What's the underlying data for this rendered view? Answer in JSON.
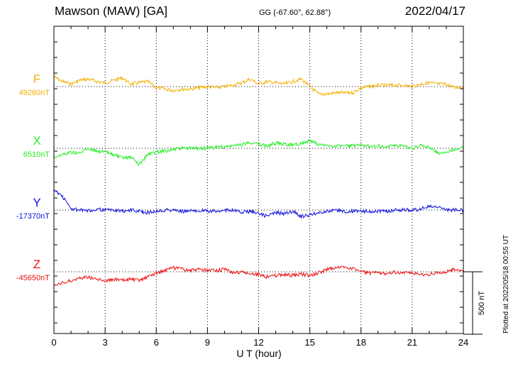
{
  "header": {
    "station": "Mawson (MAW)  [GA]",
    "coords": "GG (-67.60°,  62.88°)",
    "date": "2022/04/17"
  },
  "scale_label": "500 nT",
  "plotted_note": "Plotted at 2022/05/18 00:55 UT",
  "colors": {
    "F": "#f5b000",
    "X": "#22ee22",
    "Y": "#1010e0",
    "Z": "#ee1111",
    "axes": "#000000"
  },
  "chart_data": {
    "type": "line",
    "xlabel": "U T (hour)",
    "xlim": [
      0,
      24
    ],
    "xticks": [
      0,
      3,
      6,
      9,
      12,
      15,
      18,
      21,
      24
    ],
    "grid": true,
    "units": "nT",
    "scale_bar_nT": 500,
    "series": [
      {
        "name": "F",
        "baseline_label": "49280nT",
        "baseline": 49280,
        "x": [
          0,
          0.5,
          1,
          1.5,
          2,
          2.5,
          3,
          3.5,
          4,
          4.5,
          5,
          5.5,
          6,
          6.5,
          7,
          7.5,
          8,
          8.5,
          9,
          9.5,
          10,
          10.5,
          11,
          11.5,
          12,
          12.5,
          13,
          13.5,
          14,
          14.5,
          15,
          15.5,
          16,
          16.5,
          17,
          17.5,
          18,
          18.5,
          19,
          19.5,
          20,
          20.5,
          21,
          21.5,
          22,
          22.5,
          23,
          23.5,
          24
        ],
        "values": [
          49360,
          49320,
          49300,
          49330,
          49340,
          49320,
          49310,
          49330,
          49350,
          49300,
          49310,
          49320,
          49270,
          49260,
          49250,
          49260,
          49260,
          49270,
          49280,
          49270,
          49280,
          49290,
          49310,
          49340,
          49300,
          49320,
          49310,
          49300,
          49320,
          49340,
          49280,
          49220,
          49220,
          49230,
          49230,
          49230,
          49270,
          49280,
          49290,
          49290,
          49290,
          49290,
          49280,
          49300,
          49310,
          49300,
          49300,
          49270,
          49280
        ]
      },
      {
        "name": "X",
        "baseline_label": "6510nT",
        "baseline": 6510,
        "x": [
          0,
          0.5,
          1,
          1.5,
          2,
          2.5,
          3,
          3.5,
          4,
          4.5,
          5,
          5.5,
          6,
          6.5,
          7,
          7.5,
          8,
          8.5,
          9,
          9.5,
          10,
          10.5,
          11,
          11.5,
          12,
          12.5,
          13,
          13.5,
          14,
          14.5,
          15,
          15.5,
          16,
          16.5,
          17,
          17.5,
          18,
          18.5,
          19,
          19.5,
          20,
          20.5,
          21,
          21.5,
          22,
          22.5,
          23,
          23.5,
          24
        ],
        "values": [
          6440,
          6460,
          6480,
          6470,
          6510,
          6490,
          6480,
          6460,
          6430,
          6440,
          6380,
          6460,
          6480,
          6490,
          6500,
          6510,
          6510,
          6510,
          6510,
          6520,
          6520,
          6530,
          6540,
          6560,
          6540,
          6530,
          6550,
          6540,
          6540,
          6550,
          6570,
          6540,
          6530,
          6530,
          6530,
          6530,
          6530,
          6530,
          6530,
          6520,
          6530,
          6530,
          6510,
          6530,
          6520,
          6470,
          6480,
          6500,
          6520
        ]
      },
      {
        "name": "Y",
        "baseline_label": "-17370nT",
        "baseline": -17370,
        "x": [
          0,
          0.5,
          1,
          1.5,
          2,
          2.5,
          3,
          3.5,
          4,
          4.5,
          5,
          5.5,
          6,
          6.5,
          7,
          7.5,
          8,
          8.5,
          9,
          9.5,
          10,
          10.5,
          11,
          11.5,
          12,
          12.5,
          13,
          13.5,
          14,
          14.5,
          15,
          15.5,
          16,
          16.5,
          17,
          17.5,
          18,
          18.5,
          19,
          19.5,
          20,
          20.5,
          21,
          21.5,
          22,
          22.5,
          23,
          23.5,
          24
        ],
        "values": [
          -17210,
          -17260,
          -17360,
          -17370,
          -17380,
          -17360,
          -17370,
          -17370,
          -17380,
          -17370,
          -17380,
          -17390,
          -17380,
          -17370,
          -17370,
          -17380,
          -17380,
          -17370,
          -17380,
          -17380,
          -17370,
          -17370,
          -17390,
          -17380,
          -17400,
          -17420,
          -17390,
          -17400,
          -17380,
          -17420,
          -17410,
          -17390,
          -17380,
          -17370,
          -17380,
          -17380,
          -17380,
          -17380,
          -17380,
          -17380,
          -17370,
          -17370,
          -17370,
          -17360,
          -17340,
          -17350,
          -17370,
          -17370,
          -17370
        ]
      },
      {
        "name": "Z",
        "baseline_label": "-45650nT",
        "baseline": -45650,
        "x": [
          0,
          0.5,
          1,
          1.5,
          2,
          2.5,
          3,
          3.5,
          4,
          4.5,
          5,
          5.5,
          6,
          6.5,
          7,
          7.5,
          8,
          8.5,
          9,
          9.5,
          10,
          10.5,
          11,
          11.5,
          12,
          12.5,
          13,
          13.5,
          14,
          14.5,
          15,
          15.5,
          16,
          16.5,
          17,
          17.5,
          18,
          18.5,
          19,
          19.5,
          20,
          20.5,
          21,
          21.5,
          22,
          22.5,
          23,
          23.5,
          24
        ],
        "values": [
          -45770,
          -45740,
          -45720,
          -45700,
          -45690,
          -45710,
          -45720,
          -45710,
          -45720,
          -45710,
          -45720,
          -45690,
          -45660,
          -45640,
          -45620,
          -45630,
          -45640,
          -45630,
          -45640,
          -45640,
          -45630,
          -45660,
          -45650,
          -45670,
          -45670,
          -45690,
          -45680,
          -45670,
          -45680,
          -45670,
          -45680,
          -45660,
          -45630,
          -45620,
          -45610,
          -45620,
          -45650,
          -45660,
          -45660,
          -45660,
          -45650,
          -45660,
          -45660,
          -45670,
          -45670,
          -45660,
          -45650,
          -45630,
          -45640
        ]
      }
    ]
  }
}
